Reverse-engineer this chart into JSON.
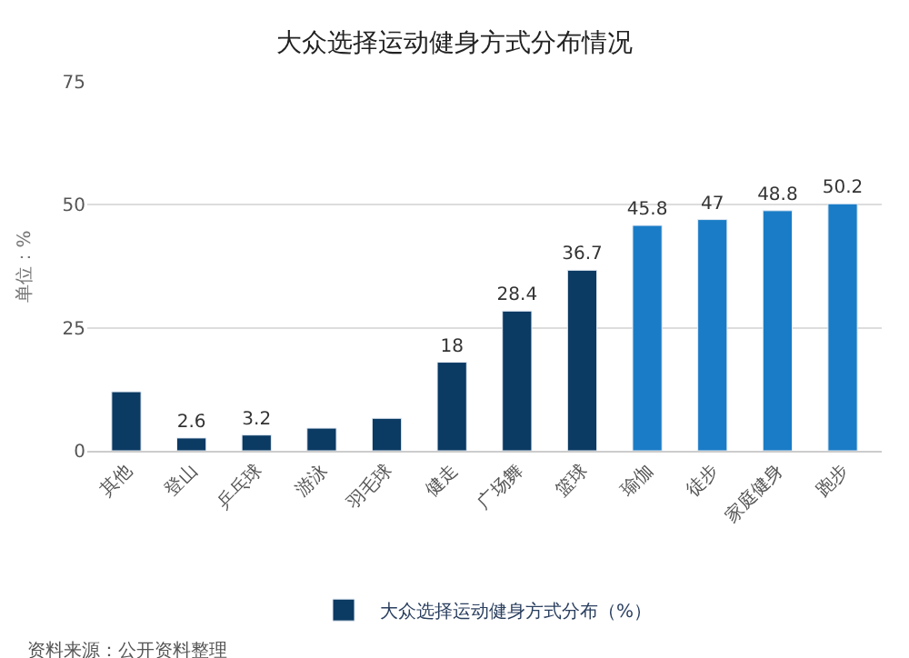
{
  "chart_data": {
    "type": "bar",
    "title": "大众选择运动健身方式分布情况",
    "ylabel": "单位：%",
    "categories": [
      "其他",
      "登山",
      "乒乓球",
      "游泳",
      "羽毛球",
      "健走",
      "广场舞",
      "篮球",
      "瑜伽",
      "徒步",
      "家庭健身",
      "跑步"
    ],
    "series": [
      {
        "name": "大众选择运动健身方式分布（%）",
        "colors": [
          "#0b3a63",
          "#0b3a63",
          "#0b3a63",
          "#0b3a63",
          "#0b3a63",
          "#0b3a63",
          "#0b3a63",
          "#0b3a63",
          "#1a7cc6",
          "#1a7cc6",
          "#1a7cc6",
          "#1a7cc6"
        ],
        "values": [
          12,
          2.6,
          3.2,
          4.6,
          6.6,
          18,
          28.4,
          36.7,
          45.8,
          47,
          48.8,
          50.2
        ],
        "value_labels": [
          null,
          "2.6",
          "3.2",
          null,
          null,
          "18",
          "28.4",
          "36.7",
          "45.8",
          "47",
          "48.8",
          "50.2"
        ]
      }
    ],
    "ylim": [
      0,
      75
    ],
    "yticks": [
      0,
      25,
      50,
      75
    ],
    "grid": "y",
    "legend": "bottom",
    "annotations": [
      "资料来源：公开资料整理"
    ]
  }
}
